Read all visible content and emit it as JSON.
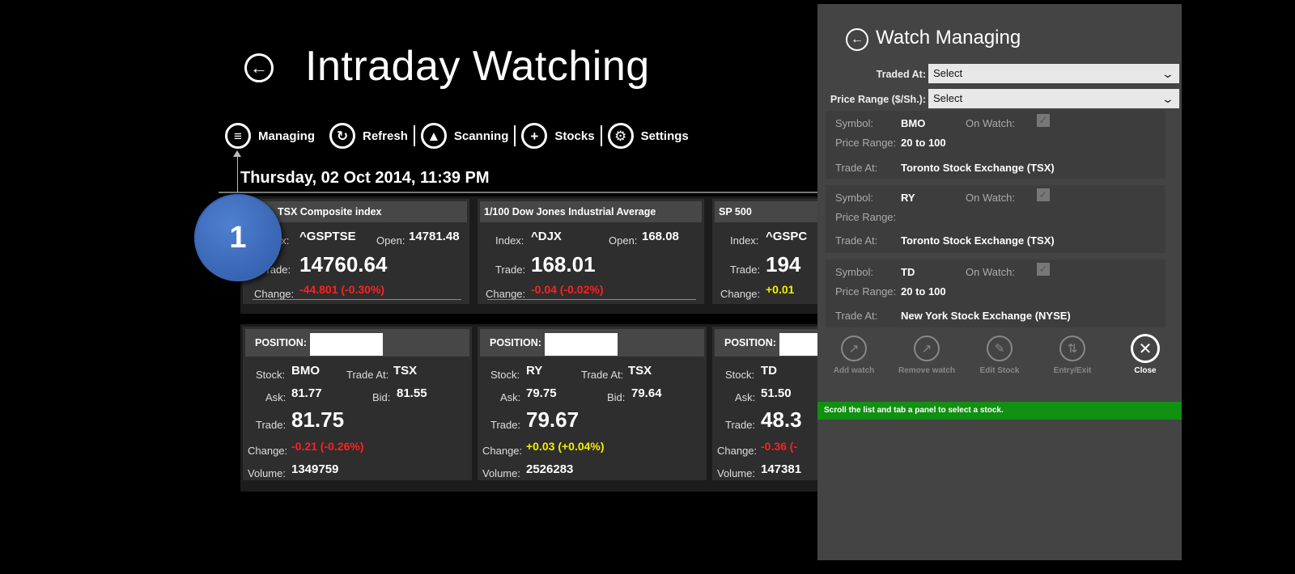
{
  "header": {
    "title": "Intraday Watching",
    "back_icon": "back-arrow-icon"
  },
  "toolbar": {
    "items": [
      {
        "label": "Managing",
        "icon": "list-icon"
      },
      {
        "label": "Refresh",
        "icon": "refresh-icon"
      },
      {
        "label": "Scanning",
        "icon": "scan-icon"
      },
      {
        "label": "Stocks",
        "icon": "plus-icon"
      },
      {
        "label": "Settings",
        "icon": "gear-icon"
      }
    ]
  },
  "datetime": "Thursday, 02 Oct 2014, 11:39 PM",
  "callout": {
    "number": "1"
  },
  "index_cards": [
    {
      "title": "TSX Composite index",
      "index_label": "Index:",
      "index": "^GSPTSE",
      "open_label": "Open:",
      "open": "14781.48",
      "trade_label": "Trade:",
      "trade": "14760.64",
      "change_label": "Change:",
      "change": "-44.801 (-0.30%)"
    },
    {
      "title": "1/100 Dow Jones Industrial Average",
      "index_label": "Index:",
      "index": "^DJX",
      "open_label": "Open:",
      "open": "168.08",
      "trade_label": "Trade:",
      "trade": "168.01",
      "change_label": "Change:",
      "change": "-0.04 (-0.02%)"
    },
    {
      "title": "SP 500",
      "index_label": "Index:",
      "index": "^GSPC",
      "trade_label": "Trade:",
      "trade": "194",
      "change_label": "Change:",
      "change": "+0.01"
    }
  ],
  "position_cards": [
    {
      "header": "POSITION:",
      "stock_label": "Stock:",
      "stock": "BMO",
      "trade_at_label": "Trade At:",
      "trade_at": "TSX",
      "ask_label": "Ask:",
      "ask": "81.77",
      "bid_label": "Bid:",
      "bid": "81.55",
      "trade_label": "Trade:",
      "trade": "81.75",
      "change_label": "Change:",
      "change": "-0.21 (-0.26%)",
      "volume_label": "Volume:",
      "volume": "1349759"
    },
    {
      "header": "POSITION:",
      "stock_label": "Stock:",
      "stock": "RY",
      "trade_at_label": "Trade At:",
      "trade_at": "TSX",
      "ask_label": "Ask:",
      "ask": "79.75",
      "bid_label": "Bid:",
      "bid": "79.64",
      "trade_label": "Trade:",
      "trade": "79.67",
      "change_label": "Change:",
      "change": "+0.03 (+0.04%)",
      "volume_label": "Volume:",
      "volume": "2526283"
    },
    {
      "header": "POSITION:",
      "stock_label": "Stock:",
      "stock": "TD",
      "ask_label": "Ask:",
      "ask": "51.50",
      "trade_label": "Trade:",
      "trade": "48.3",
      "change_label": "Change:",
      "change": "-0.36 (-",
      "volume_label": "Volume:",
      "volume": "147381"
    }
  ],
  "watch_panel": {
    "title": "Watch Managing",
    "traded_at_label": "Traded At:",
    "traded_at_value": "Select",
    "price_range_label": "Price Range ($/Sh.):",
    "price_range_value": "Select",
    "entries": [
      {
        "symbol_label": "Symbol:",
        "symbol": "BMO",
        "on_watch_label": "On Watch:",
        "on_watch": true,
        "price_range_label": "Price Range:",
        "price_range": "20 to 100",
        "trade_at_label": "Trade At:",
        "trade_at": "Toronto Stock Exchange (TSX)"
      },
      {
        "symbol_label": "Symbol:",
        "symbol": "RY",
        "on_watch_label": "On Watch:",
        "on_watch": true,
        "price_range_label": "Price Range:",
        "price_range": "",
        "trade_at_label": "Trade At:",
        "trade_at": "Toronto Stock Exchange (TSX)"
      },
      {
        "symbol_label": "Symbol:",
        "symbol": "TD",
        "on_watch_label": "On Watch:",
        "on_watch": true,
        "price_range_label": "Price Range:",
        "price_range": "20 to 100",
        "trade_at_label": "Trade At:",
        "trade_at": "New York Stock Exchange (NYSE)"
      }
    ],
    "actions": [
      {
        "label": "Add watch",
        "icon": "add-watch-icon",
        "enabled": false
      },
      {
        "label": "Remove watch",
        "icon": "remove-watch-icon",
        "enabled": false
      },
      {
        "label": "Edit Stock",
        "icon": "edit-icon",
        "enabled": false
      },
      {
        "label": "Entry/Exit",
        "icon": "entry-exit-icon",
        "enabled": false
      },
      {
        "label": "Close",
        "icon": "close-icon",
        "enabled": true
      }
    ],
    "status": "Scroll the list and tab a panel to select a stock."
  },
  "colors": {
    "negative": "#ff2020",
    "positive": "#f0f000",
    "status_bar": "#119011",
    "callout": "#3a66b4"
  }
}
